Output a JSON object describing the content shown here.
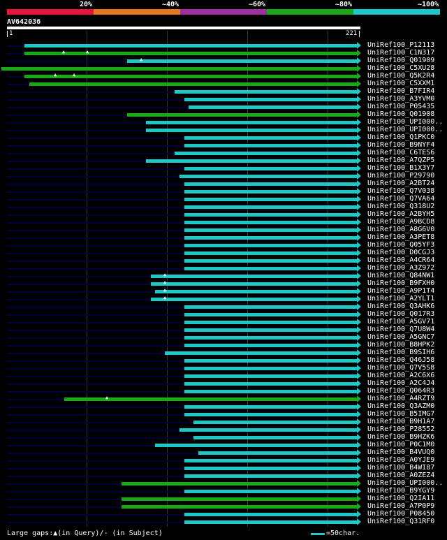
{
  "legend": {
    "labels": [
      "20%",
      "~40%",
      "~60%",
      "~80%",
      "~100%"
    ],
    "colors": [
      "#e8143c",
      "#e87820",
      "#a030a0",
      "#18a818",
      "#1ec8c8"
    ]
  },
  "query": {
    "name": "AV642036",
    "start": "1",
    "end": "221"
  },
  "hits": [
    {
      "name": "UniRef100_P12113",
      "s": 35,
      "c": "cyan"
    },
    {
      "name": "UniRef100_C1N317",
      "s": 35,
      "c": "green",
      "gaps": [
        92,
        126
      ]
    },
    {
      "name": "UniRef100_Q01909",
      "s": 182,
      "c": "cyan",
      "gaps": [
        203
      ]
    },
    {
      "name": "UniRef100_C5XU28",
      "s": 2,
      "c": "green"
    },
    {
      "name": "UniRef100_Q5K2R4",
      "s": 35,
      "c": "green",
      "gaps": [
        80,
        107
      ]
    },
    {
      "name": "UniRef100_C5XXM1",
      "s": 42,
      "c": "green"
    },
    {
      "name": "UniRef100_B7FIR4",
      "s": 250,
      "c": "cyan"
    },
    {
      "name": "UniRef100_A3YVM0",
      "s": 264,
      "c": "cyan"
    },
    {
      "name": "UniRef100_P05435",
      "s": 270,
      "c": "cyan"
    },
    {
      "name": "UniRef100_Q01908",
      "s": 182,
      "c": "green"
    },
    {
      "name": "UniRef100_UPI000..",
      "s": 209,
      "c": "cyan"
    },
    {
      "name": "UniRef100_UPI000..",
      "s": 209,
      "c": "cyan"
    },
    {
      "name": "UniRef100_Q1PKC0",
      "s": 264,
      "c": "cyan"
    },
    {
      "name": "UniRef100_B9NYF4",
      "s": 264,
      "c": "cyan"
    },
    {
      "name": "UniRef100_C6TES6",
      "s": 250,
      "c": "cyan"
    },
    {
      "name": "UniRef100_A7QZP5",
      "s": 209,
      "c": "cyan"
    },
    {
      "name": "UniRef100_B1X3Y7",
      "s": 264,
      "c": "cyan"
    },
    {
      "name": "UniRef100_P29790",
      "s": 257,
      "c": "cyan"
    },
    {
      "name": "UniRef100_A2BT24",
      "s": 264,
      "c": "cyan"
    },
    {
      "name": "UniRef100_Q7V038",
      "s": 264,
      "c": "cyan"
    },
    {
      "name": "UniRef100_Q7VA64",
      "s": 264,
      "c": "cyan"
    },
    {
      "name": "UniRef100_Q318U2",
      "s": 264,
      "c": "cyan"
    },
    {
      "name": "UniRef100_A2BYH5",
      "s": 264,
      "c": "cyan"
    },
    {
      "name": "UniRef100_A9BCD8",
      "s": 264,
      "c": "cyan"
    },
    {
      "name": "UniRef100_A8G6V0",
      "s": 264,
      "c": "cyan"
    },
    {
      "name": "UniRef100_A3PET8",
      "s": 264,
      "c": "cyan"
    },
    {
      "name": "UniRef100_Q05YF3",
      "s": 264,
      "c": "cyan"
    },
    {
      "name": "UniRef100_D0CGJ3",
      "s": 264,
      "c": "cyan"
    },
    {
      "name": "UniRef100_A4CR64",
      "s": 264,
      "c": "cyan"
    },
    {
      "name": "UniRef100_A3Z972",
      "s": 264,
      "c": "cyan"
    },
    {
      "name": "UniRef100_Q84NW1",
      "s": 216,
      "c": "cyan",
      "gaps": [
        237
      ]
    },
    {
      "name": "UniRef100_B9FXH0",
      "s": 216,
      "c": "cyan",
      "gaps": [
        237
      ]
    },
    {
      "name": "UniRef100_A9P1T4",
      "s": 222,
      "c": "cyan",
      "gaps": [
        237
      ]
    },
    {
      "name": "UniRef100_A2YLT1",
      "s": 216,
      "c": "cyan",
      "gaps": [
        237
      ]
    },
    {
      "name": "UniRef100_Q3AHK6",
      "s": 264,
      "c": "cyan"
    },
    {
      "name": "UniRef100_Q017R3",
      "s": 264,
      "c": "cyan"
    },
    {
      "name": "UniRef100_A5GV71",
      "s": 264,
      "c": "cyan"
    },
    {
      "name": "UniRef100_Q7U8W4",
      "s": 264,
      "c": "cyan"
    },
    {
      "name": "UniRef100_A5GNC7",
      "s": 264,
      "c": "cyan"
    },
    {
      "name": "UniRef100_B8HPK2",
      "s": 264,
      "c": "cyan"
    },
    {
      "name": "UniRef100_B9SIH6",
      "s": 236,
      "c": "cyan"
    },
    {
      "name": "UniRef100_Q46J58",
      "s": 264,
      "c": "cyan"
    },
    {
      "name": "UniRef100_Q7V5S8",
      "s": 264,
      "c": "cyan"
    },
    {
      "name": "UniRef100_A2C6X6",
      "s": 264,
      "c": "cyan"
    },
    {
      "name": "UniRef100_A2C4J4",
      "s": 264,
      "c": "cyan"
    },
    {
      "name": "UniRef100_Q064R3",
      "s": 264,
      "c": "cyan"
    },
    {
      "name": "UniRef100_A4RZT9",
      "s": 92,
      "c": "green",
      "gaps": [
        154
      ]
    },
    {
      "name": "UniRef100_Q3AZM0",
      "s": 264,
      "c": "cyan"
    },
    {
      "name": "UniRef100_B5IMG7",
      "s": 264,
      "c": "cyan"
    },
    {
      "name": "UniRef100_B9H1A7",
      "s": 277,
      "c": "cyan"
    },
    {
      "name": "UniRef100_P28552",
      "s": 257,
      "c": "cyan"
    },
    {
      "name": "UniRef100_B9HZK6",
      "s": 277,
      "c": "cyan"
    },
    {
      "name": "UniRef100_P0C1M0",
      "s": 222,
      "c": "cyan"
    },
    {
      "name": "UniRef100_B4VUQ0",
      "s": 284,
      "c": "cyan"
    },
    {
      "name": "UniRef100_A0YJE9",
      "s": 264,
      "c": "cyan"
    },
    {
      "name": "UniRef100_B4WI87",
      "s": 264,
      "c": "cyan"
    },
    {
      "name": "UniRef100_A0ZEZ4",
      "s": 264,
      "c": "cyan"
    },
    {
      "name": "UniRef100_UPI000..",
      "s": 174,
      "c": "green"
    },
    {
      "name": "UniRef100_B9YGY9",
      "s": 264,
      "c": "cyan"
    },
    {
      "name": "UniRef100_Q2IA11",
      "s": 174,
      "c": "green"
    },
    {
      "name": "UniRef100_A7P0P9",
      "s": 174,
      "c": "green"
    },
    {
      "name": "UniRef100_P08450",
      "s": 264,
      "c": "cyan"
    },
    {
      "name": "UniRef100_Q31RF0",
      "s": 264,
      "c": "cyan"
    }
  ],
  "footer": {
    "gaps_text": "Large gaps:▲(in Query)/- (in Subject)",
    "scale_text": "=50char."
  }
}
